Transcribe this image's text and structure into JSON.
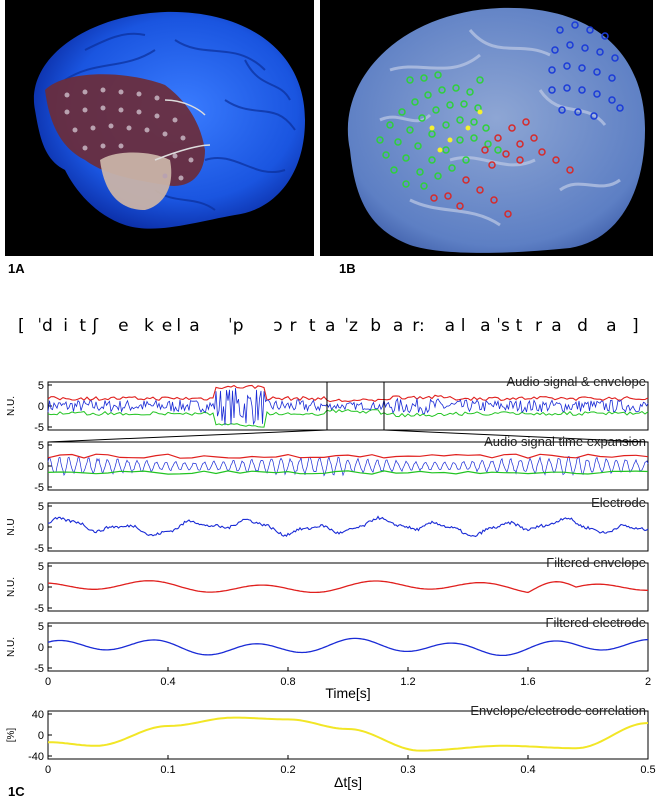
{
  "panels": {
    "a_label": "1A",
    "b_label": "1B",
    "c_label": "1C"
  },
  "phonetic": [
    "[",
    "ˈd",
    "i",
    "t",
    "ʃ",
    "e",
    "k",
    "e",
    "l",
    "a",
    "ˈp",
    "ɔ",
    "r",
    "t",
    "a",
    "ˈz",
    "b",
    "a",
    "r:",
    "a",
    "l",
    "a",
    "ˈs",
    "t",
    "r",
    "a",
    "d",
    "a",
    "]"
  ],
  "colors": {
    "envelope_red": "#e0201e",
    "signal_blue": "#1a2bd6",
    "envelope_green": "#22c422",
    "correlation_yellow": "#f2e626",
    "brain_blue": "#1f62ee",
    "electrode_green": "#2ed13a",
    "electrode_red": "#d62a2a",
    "electrode_blue": "#1b3bd8"
  },
  "chart_data": [
    {
      "type": "line",
      "title": "Audio signal & envelope",
      "ylabel": "N.U.",
      "xlim": [
        0,
        2
      ],
      "ylim": [
        -5,
        5
      ],
      "yticks": [
        "5",
        "0",
        "-5"
      ],
      "series": [
        {
          "name": "",
          "color": "red",
          "kind": "upper envelope"
        },
        {
          "name": "",
          "color": "blue",
          "kind": "audio signal"
        },
        {
          "name": "",
          "color": "green",
          "kind": "lower envelope"
        }
      ],
      "zoom_window": [
        0.93,
        1.12
      ]
    },
    {
      "type": "line",
      "title": "Audio signal time expansion",
      "ylim": [
        -5,
        5
      ],
      "yticks": [
        "5",
        "0",
        "-5"
      ]
    },
    {
      "type": "line",
      "title": "Electrode",
      "ylabel": "N.U",
      "ylim": [
        -5,
        5
      ],
      "yticks": [
        "5",
        "0",
        "-5"
      ]
    },
    {
      "type": "line",
      "title": "Filtered envelope",
      "ylabel": "N.U.",
      "ylim": [
        -5,
        5
      ],
      "yticks": [
        "5",
        "0",
        "-5"
      ]
    },
    {
      "type": "line",
      "title": "Filtered electrode",
      "ylabel": "N.U.",
      "ylim": [
        -5,
        5
      ],
      "yticks": [
        "5",
        "0",
        "-5"
      ],
      "x": [
        0,
        0.4,
        0.8,
        1.2,
        1.6,
        2
      ],
      "xticks": [
        "0",
        "0.4",
        "0.8",
        "1.2",
        "1.6",
        "2"
      ],
      "xlabel": "Time[s]"
    },
    {
      "type": "line",
      "title": "Envelope/electrode correlation",
      "ylabel": "[%]",
      "ylim": [
        -40,
        40
      ],
      "yticks": [
        "40",
        "0",
        "-40"
      ],
      "xticks": [
        "0",
        "0.1",
        "0.2",
        "0.3",
        "0.4",
        "0.5"
      ],
      "xlabel": "Δt[s]",
      "x": [
        0,
        0.04,
        0.1,
        0.155,
        0.2,
        0.25,
        0.31,
        0.38,
        0.44,
        0.5
      ],
      "values": [
        -12,
        -18,
        15,
        29,
        26,
        10,
        -26,
        -18,
        -22,
        20
      ]
    }
  ]
}
